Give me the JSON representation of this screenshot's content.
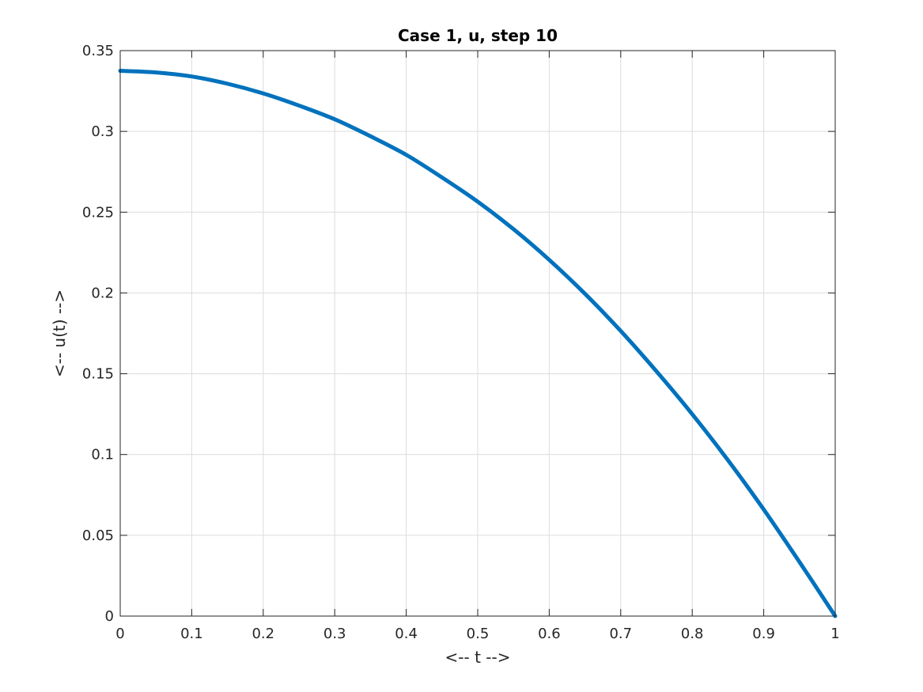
{
  "chart_data": {
    "type": "line",
    "title": "Case 1, u, step 10",
    "xlabel": "<-- t -->",
    "ylabel": "<-- u(t) -->",
    "xlim": [
      0,
      1
    ],
    "ylim": [
      0,
      0.35
    ],
    "xticks": [
      "0",
      "0.1",
      "0.2",
      "0.3",
      "0.4",
      "0.5",
      "0.6",
      "0.7",
      "0.8",
      "0.9",
      "1"
    ],
    "yticks": [
      "0",
      "0.05",
      "0.1",
      "0.15",
      "0.2",
      "0.25",
      "0.3",
      "0.35"
    ],
    "grid": true,
    "series": [
      {
        "color": "#0072BD",
        "x": [
          0,
          0.05,
          0.1,
          0.15,
          0.2,
          0.25,
          0.3,
          0.35,
          0.4,
          0.45,
          0.5,
          0.55,
          0.6,
          0.65,
          0.7,
          0.75,
          0.8,
          0.85,
          0.9,
          0.95,
          1.0
        ],
        "y": [
          0.3375,
          0.3365,
          0.334,
          0.3295,
          0.3235,
          0.316,
          0.3075,
          0.297,
          0.2855,
          0.2715,
          0.2565,
          0.2395,
          0.2205,
          0.1995,
          0.1765,
          0.1515,
          0.125,
          0.0965,
          0.066,
          0.0335,
          0.0
        ]
      }
    ]
  }
}
